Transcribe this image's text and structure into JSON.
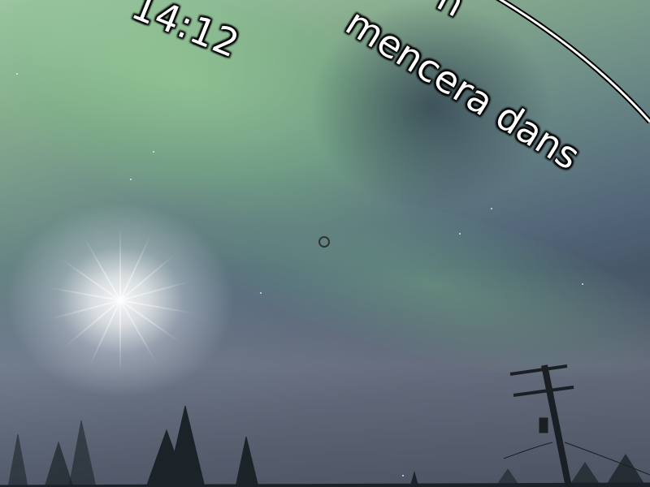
{
  "overlay": {
    "time": "14:12",
    "caption_line1": "n",
    "caption_line2": "mencera dans"
  },
  "icons": {
    "cursor": "ring-cursor-icon"
  },
  "colors": {
    "aurora_green": "#86ab8e",
    "night_sky": "#2f3a4a",
    "text": "#ffffff"
  }
}
